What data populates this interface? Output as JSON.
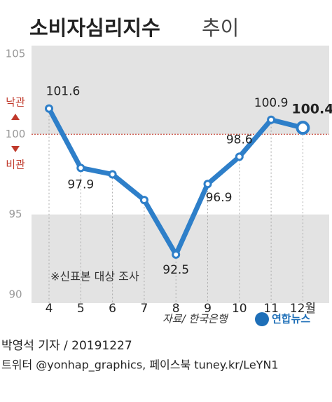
{
  "chart_data": {
    "type": "line",
    "title": "소비자심리지수",
    "subtitle": "추이",
    "categories": [
      "4",
      "5",
      "6",
      "7",
      "8",
      "9",
      "10",
      "11",
      "12월"
    ],
    "series": [
      {
        "name": "소비자심리지수",
        "color": "#2e7fc9",
        "values": [
          101.6,
          97.9,
          97.5,
          95.9,
          92.5,
          96.9,
          98.6,
          100.9,
          100.4
        ],
        "value_labels": [
          "101.6",
          "97.9",
          null,
          null,
          "92.5",
          "96.9",
          "98.6",
          "100.9",
          "100.4"
        ]
      }
    ],
    "ylim": [
      90,
      105
    ],
    "yticks": [
      90,
      95,
      100,
      105
    ],
    "band": [
      95,
      100
    ],
    "reference_line": 100,
    "annotations": {
      "optimism": "낙관",
      "pessimism": "비관",
      "note": "※신표본 대상 조사"
    },
    "source": "자료/ 한국은행",
    "agency": "연합뉴스",
    "byline": "박영석 기자 / 20191227",
    "footer": "트위터 @yonhap_graphics, 페이스북 tuney.kr/LeYN1"
  }
}
